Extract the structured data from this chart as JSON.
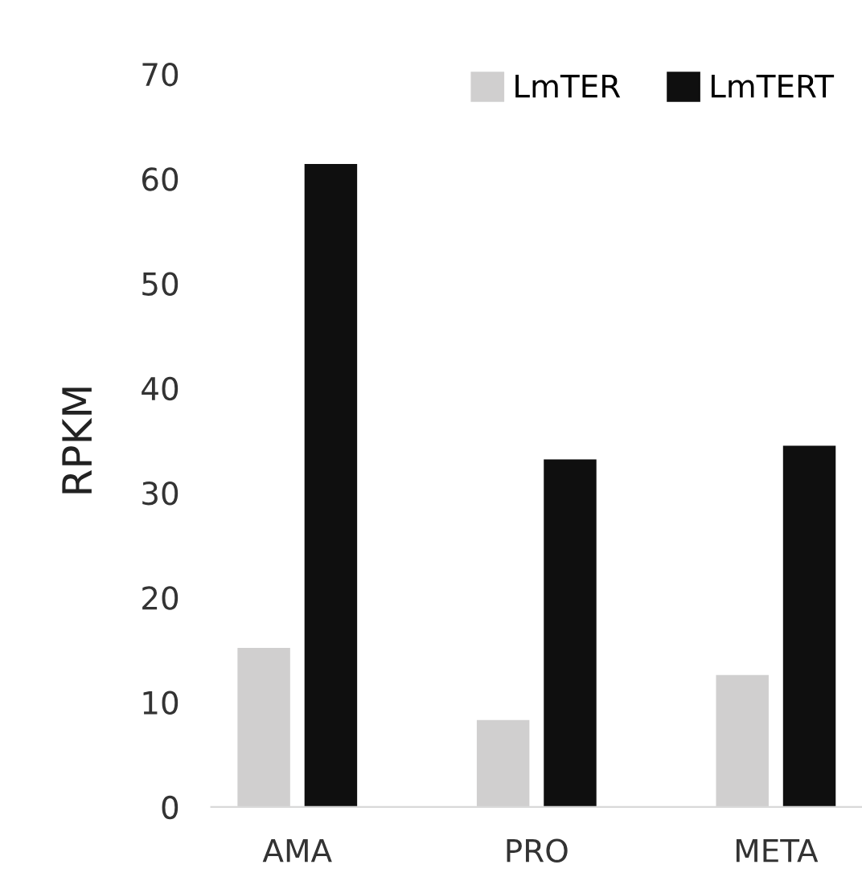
{
  "chart_data": {
    "type": "bar",
    "ylabel": "RPKM",
    "categories": [
      "AMA",
      "PRO",
      "META"
    ],
    "series": [
      {
        "name": "LmTER",
        "color": "#d0cfcf",
        "values": [
          15.2,
          8.3,
          12.6
        ]
      },
      {
        "name": "LmTERT",
        "color": "#0f0f0f",
        "values": [
          61.4,
          33.2,
          34.5
        ]
      }
    ],
    "ylim": [
      0,
      70
    ],
    "yticks": [
      0,
      10,
      20,
      30,
      40,
      50,
      60,
      70
    ],
    "grid": false,
    "legend": "top right"
  }
}
